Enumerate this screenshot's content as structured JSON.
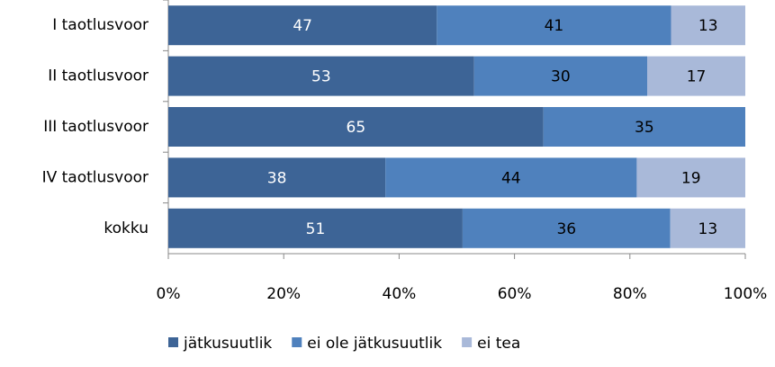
{
  "chart_data": {
    "type": "bar",
    "orientation": "horizontal",
    "stacked": "percent",
    "categories": [
      "I taotlusvoor",
      "II taotlusvoor",
      "III taotlusvoor",
      "IV taotlusvoor",
      "kokku"
    ],
    "series": [
      {
        "name": "jätkusuutlik",
        "color": "#3d6496",
        "values": [
          47,
          53,
          65,
          38,
          51
        ]
      },
      {
        "name": "ei ole jätkusuutlik",
        "color": "#4f81bd",
        "values": [
          41,
          30,
          35,
          44,
          36
        ]
      },
      {
        "name": "ei tea",
        "color": "#a9b9d9",
        "values": [
          13,
          17,
          null,
          19,
          13
        ]
      }
    ],
    "xlim": [
      0,
      100
    ],
    "xticks": [
      {
        "value": 0,
        "label": "0%"
      },
      {
        "value": 20,
        "label": "20%"
      },
      {
        "value": 40,
        "label": "40%"
      },
      {
        "value": 60,
        "label": "60%"
      },
      {
        "value": 80,
        "label": "80%"
      },
      {
        "value": 100,
        "label": "100%"
      }
    ],
    "legend": "bottom"
  }
}
